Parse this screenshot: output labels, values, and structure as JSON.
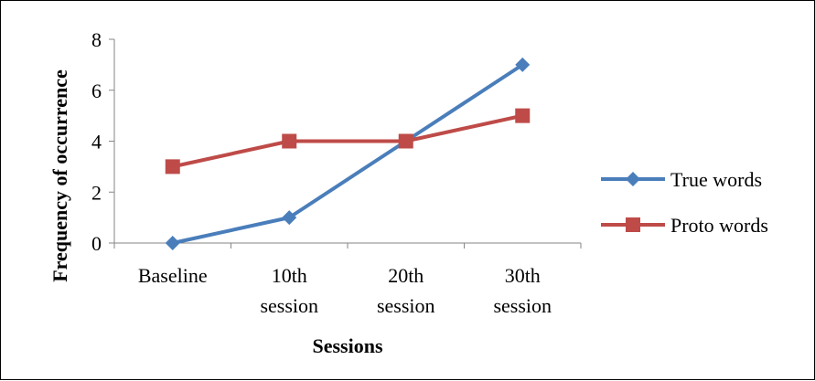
{
  "chart_data": {
    "type": "line",
    "title": "",
    "xlabel": "Sessions",
    "ylabel": "Frequency of occurrence",
    "categories": [
      [
        "Baseline"
      ],
      [
        "10th",
        "session"
      ],
      [
        "20th",
        "session"
      ],
      [
        "30th",
        "session"
      ]
    ],
    "ylim": [
      0,
      8
    ],
    "yticks": [
      0,
      2,
      4,
      6,
      8
    ],
    "grid": false,
    "legend_position": "right",
    "series": [
      {
        "name": "True words",
        "values": [
          0,
          1,
          4,
          7
        ],
        "color": "#4a7ebb",
        "marker": "diamond"
      },
      {
        "name": "Proto words",
        "values": [
          3,
          4,
          4,
          5
        ],
        "color": "#be4b48",
        "marker": "square"
      }
    ]
  }
}
